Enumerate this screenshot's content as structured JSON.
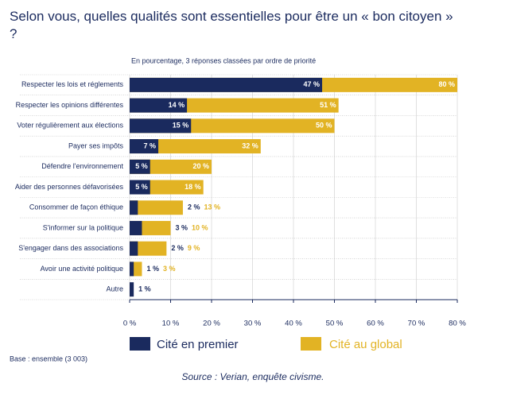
{
  "chart_data": {
    "type": "bar",
    "orientation": "horizontal",
    "title": "Selon vous, quelles qualités sont essentielles pour être un « bon citoyen » ?",
    "subtitle": "En pourcentage, 3 réponses classées par ordre de priorité",
    "categories": [
      "Respecter les lois et réglements",
      "Respecter les opinions différentes",
      "Voter régulièrement aux élections",
      "Payer ses impôts",
      "Défendre l'environnement",
      "Aider des personnes défavorisées",
      "Consommer de façon éthique",
      "S'informer sur la politique",
      "S'engager dans des associations",
      "Avoir une activité politique",
      "Autre"
    ],
    "series": [
      {
        "name": "Cité au global",
        "color": "#e2b324",
        "values": [
          80,
          51,
          50,
          32,
          20,
          18,
          13,
          10,
          9,
          3,
          null
        ],
        "value_labels": [
          "80 %",
          "51 %",
          "50 %",
          "32 %",
          "20 %",
          "18 %",
          "13 %",
          "10 %",
          "9 %",
          "3 %",
          null
        ]
      },
      {
        "name": "Cité en premier",
        "color": "#1a2a5e",
        "values": [
          47,
          14,
          15,
          7,
          5,
          5,
          2,
          3,
          2,
          1,
          1
        ],
        "value_labels": [
          "47 %",
          "14 %",
          "15 %",
          "7 %",
          "5 %",
          "5 %",
          "2 %",
          "3 %",
          "2 %",
          "1 %",
          "1 %"
        ]
      }
    ],
    "xlim": [
      0,
      80
    ],
    "xticks": [
      {
        "value": 0,
        "label": "0 %"
      },
      {
        "value": 10,
        "label": "10 %"
      },
      {
        "value": 20,
        "label": "20 %"
      },
      {
        "value": 30,
        "label": "30 %"
      },
      {
        "value": 40,
        "label": "40 %"
      },
      {
        "value": 50,
        "label": "50 %"
      },
      {
        "value": 60,
        "label": "60 %"
      },
      {
        "value": 70,
        "label": "70 %"
      },
      {
        "value": 80,
        "label": "80 %"
      }
    ],
    "grid": true,
    "base_note": "Base : ensemble (3 003)",
    "source": "Source : Verian, enquête civisme."
  }
}
